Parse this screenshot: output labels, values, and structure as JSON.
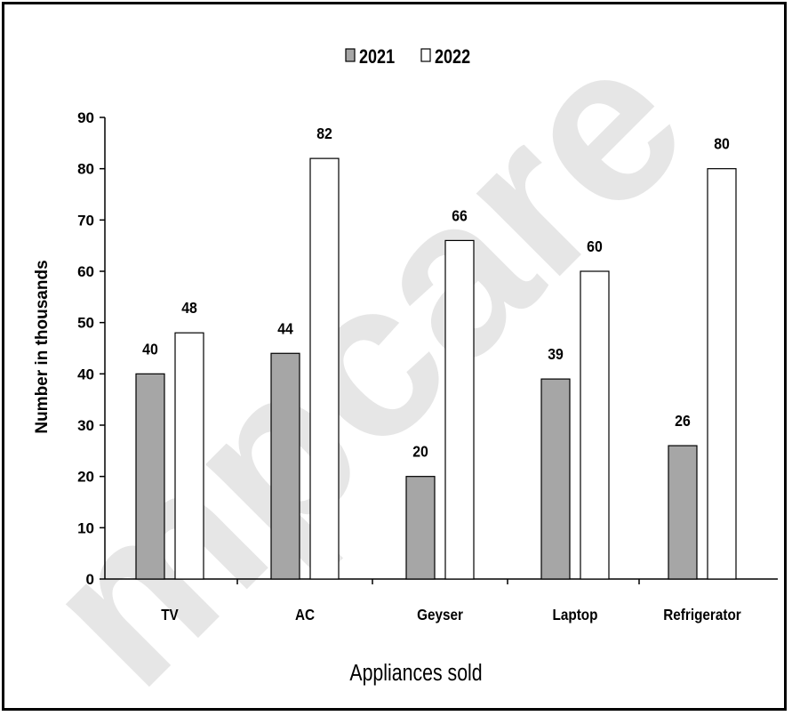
{
  "chart_data": {
    "type": "bar",
    "title": "",
    "xlabel": "Appliances sold",
    "ylabel": "Number in thousands",
    "categories": [
      "TV",
      "AC",
      "Geyser",
      "Laptop",
      "Refrigerator"
    ],
    "series": [
      {
        "name": "2021",
        "values": [
          40,
          44,
          20,
          39,
          26
        ],
        "color": "#a6a6a6"
      },
      {
        "name": "2022",
        "values": [
          48,
          82,
          66,
          60,
          80
        ],
        "color": "#ffffff"
      }
    ],
    "ylim": [
      0,
      90
    ],
    "yticks": [
      "0",
      "10",
      "20",
      "30",
      "40",
      "50",
      "60",
      "70",
      "80",
      "90"
    ],
    "legend_position": "top-center",
    "grid": false,
    "data_labels": true
  },
  "watermark": {
    "text": "mpcare",
    "color": "#e6e6e6"
  }
}
